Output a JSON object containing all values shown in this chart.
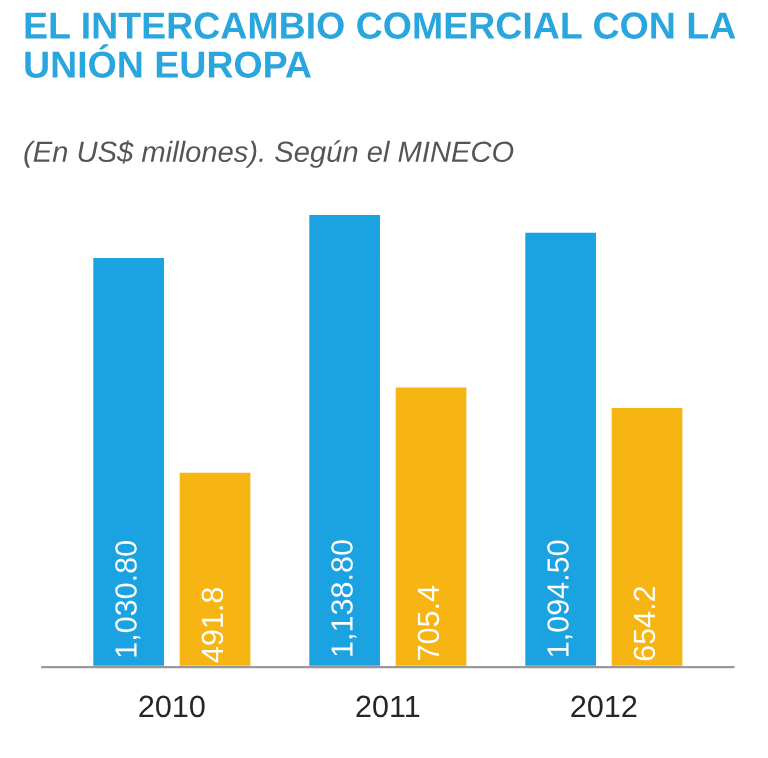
{
  "chart_data": {
    "type": "bar",
    "title": "EL INTERCAMBIO COMERCIAL CON LA\nUNIÓN EUROPA",
    "subtitle": "(En US$ millones). Según el MINECO",
    "categories": [
      "2010",
      "2011",
      "2012"
    ],
    "series": [
      {
        "color": "#1ba3e1",
        "values": [
          1030.8,
          1138.8,
          1094.5
        ],
        "value_labels": [
          "1,030.80",
          "1,138.80",
          "1,094.50"
        ]
      },
      {
        "color": "#f7b514",
        "values": [
          491.8,
          705.4,
          654.2
        ],
        "value_labels": [
          "491.8",
          "705.4",
          "654.2"
        ]
      }
    ],
    "grid": false,
    "legend": false,
    "tick_labels": "x"
  }
}
